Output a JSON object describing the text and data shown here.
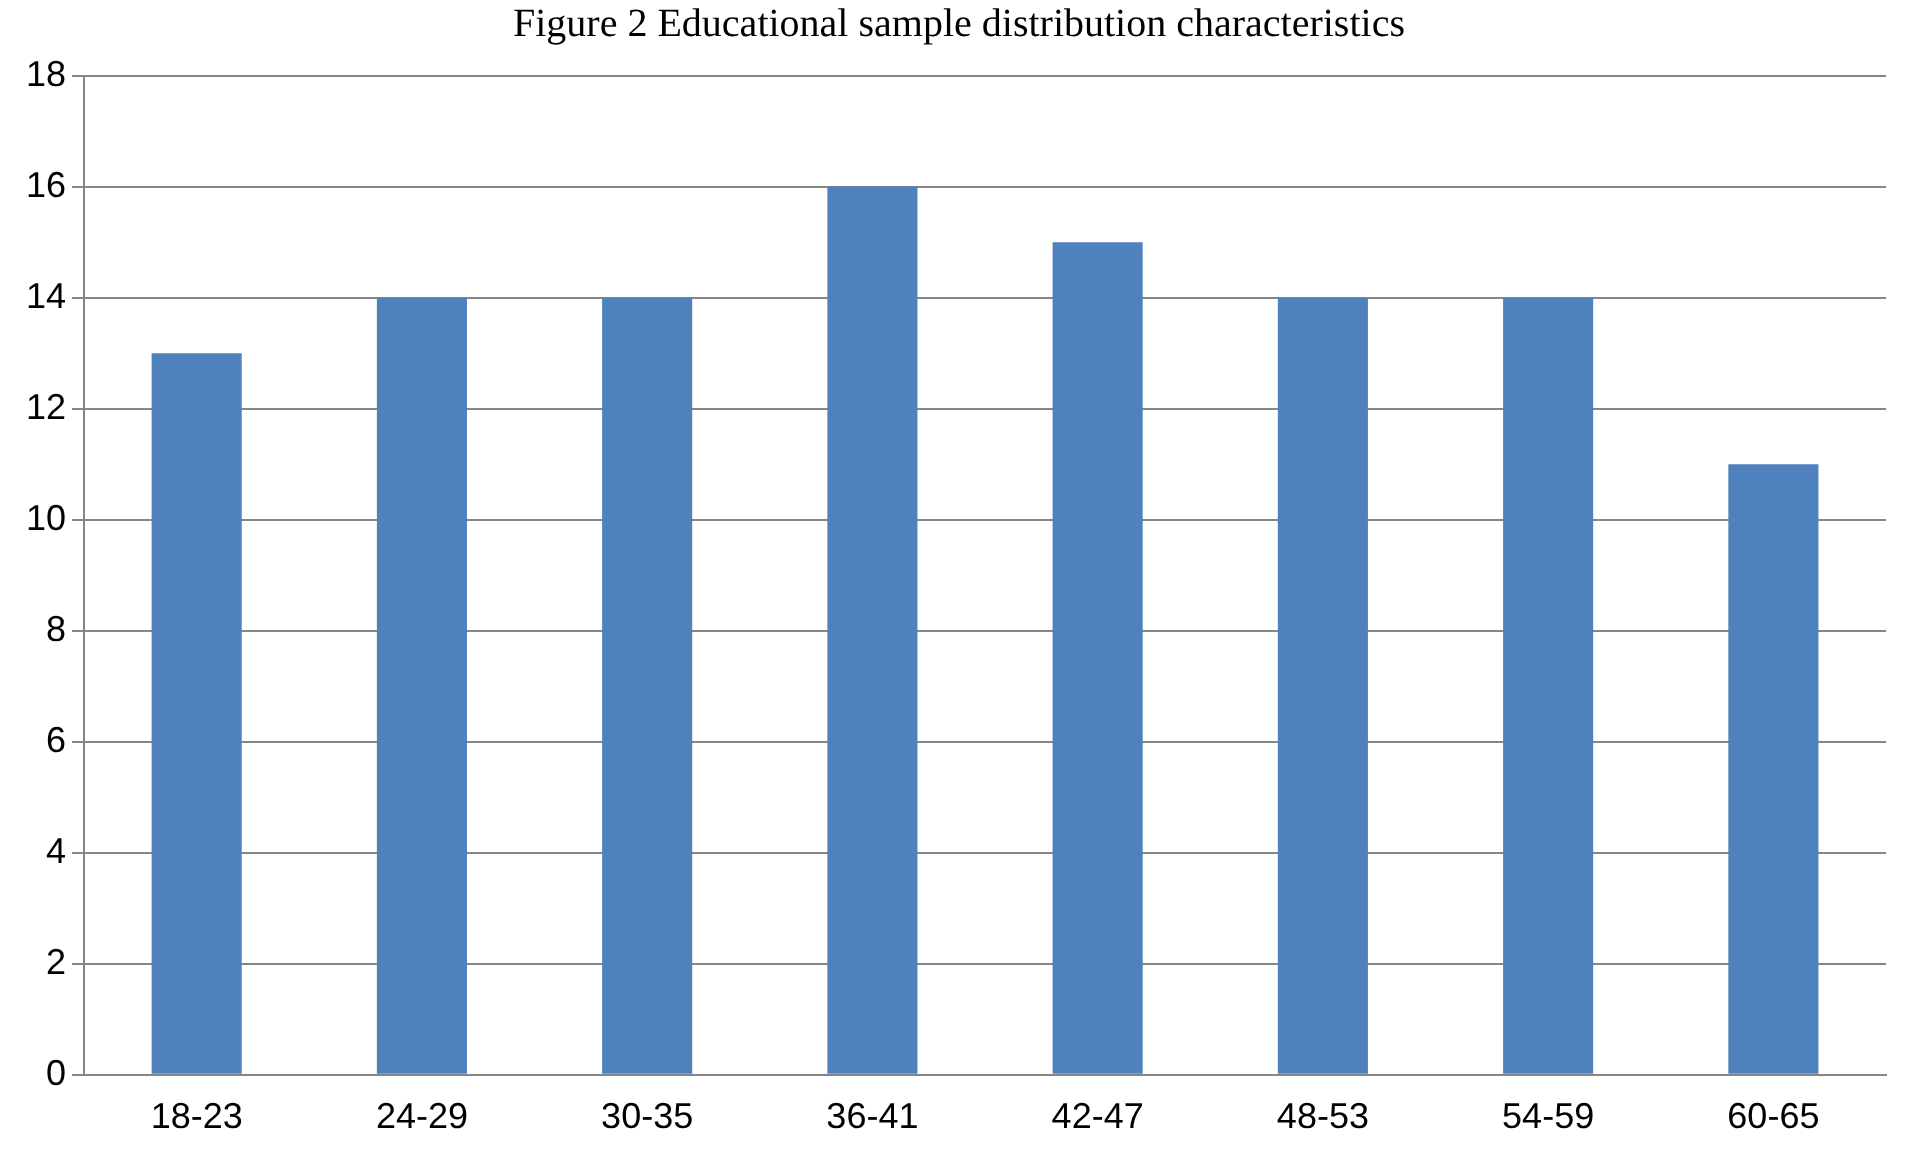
{
  "chart_data": {
    "type": "bar",
    "title": "Figure 2 Educational sample distribution characteristics",
    "categories": [
      "18-23",
      "24-29",
      "30-35",
      "36-41",
      "42-47",
      "48-53",
      "54-59",
      "60-65"
    ],
    "values": [
      13,
      14,
      14,
      16,
      15,
      14,
      14,
      11
    ],
    "color": "#4f81bd",
    "ylim": [
      0,
      18
    ],
    "yticks": [
      0,
      2,
      4,
      6,
      8,
      10,
      12,
      14,
      16,
      18
    ],
    "grid": "y",
    "legend": false
  }
}
